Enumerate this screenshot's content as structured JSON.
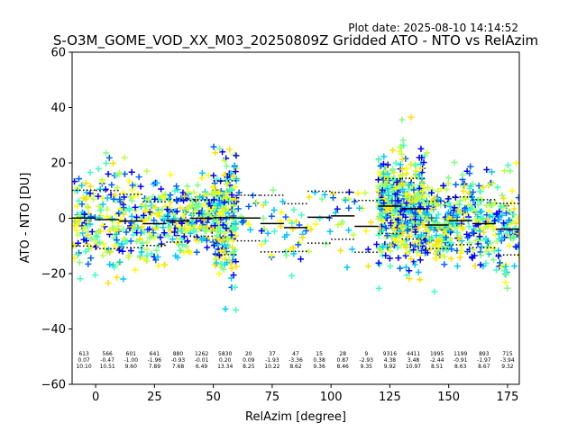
{
  "header": {
    "plot_date": "Plot date: 2025-08-10 14:14:52",
    "title": "S-O3M_GOME_VOD_XX_M03_20250809Z Gridded ATO - NTO vs RelAzim"
  },
  "chart_data": {
    "type": "scatter",
    "title": "S-O3M_GOME_VOD_XX_M03_20250809Z Gridded ATO - NTO vs RelAzim",
    "xlabel": "RelAzim [degree]",
    "ylabel": "ATO - NTO [DU]",
    "xlim": [
      -10,
      180
    ],
    "ylim": [
      -60,
      60
    ],
    "xticks": [
      0,
      25,
      50,
      75,
      100,
      125,
      150,
      175
    ],
    "yticks": [
      -60,
      -40,
      -20,
      0,
      20,
      40,
      60
    ],
    "grid": false,
    "marker": "+",
    "colors": [
      "#0000ff",
      "#0060ff",
      "#00c8ff",
      "#40ffc0",
      "#80ff80",
      "#c0ff40",
      "#ffff00",
      "#ffe000"
    ],
    "bins": [
      {
        "center": -5,
        "count": "613",
        "mean": 0.07,
        "std": 10.1,
        "mean_label": "0.07",
        "std_label": "10.10"
      },
      {
        "center": 5,
        "count": "566",
        "mean": -0.47,
        "std": 10.51,
        "mean_label": "-0.47",
        "std_label": "10.51"
      },
      {
        "center": 15,
        "count": "601",
        "mean": -1.0,
        "std": 9.6,
        "mean_label": "-1.00",
        "std_label": "9.60"
      },
      {
        "center": 25,
        "count": "641",
        "mean": -1.96,
        "std": 7.89,
        "mean_label": "-1.96",
        "std_label": "7.89"
      },
      {
        "center": 35,
        "count": "880",
        "mean": -0.93,
        "std": 7.68,
        "mean_label": "-0.93",
        "std_label": "7.68"
      },
      {
        "center": 45,
        "count": "1262",
        "mean": -0.01,
        "std": 6.49,
        "mean_label": "-0.01",
        "std_label": "6.49"
      },
      {
        "center": 55,
        "count": "5830",
        "mean": 0.2,
        "std": 13.34,
        "mean_label": "0.20",
        "std_label": "13.34"
      },
      {
        "center": 65,
        "count": "20",
        "mean": 0.09,
        "std": 8.25,
        "mean_label": "0.09",
        "std_label": "8.25"
      },
      {
        "center": 75,
        "count": "37",
        "mean": -1.93,
        "std": 10.22,
        "mean_label": "-1.93",
        "std_label": "10.22"
      },
      {
        "center": 85,
        "count": "47",
        "mean": -3.36,
        "std": 8.62,
        "mean_label": "-3.36",
        "std_label": "8.62"
      },
      {
        "center": 95,
        "count": "15",
        "mean": 0.38,
        "std": 9.36,
        "mean_label": "0.38",
        "std_label": "9.36"
      },
      {
        "center": 105,
        "count": "28",
        "mean": 0.87,
        "std": 8.46,
        "mean_label": "0.87",
        "std_label": "8.46"
      },
      {
        "center": 115,
        "count": "9",
        "mean": -2.93,
        "std": 9.35,
        "mean_label": "-2.93",
        "std_label": "9.35"
      },
      {
        "center": 125,
        "count": "9316",
        "mean": 4.38,
        "std": 9.92,
        "mean_label": "4.38",
        "std_label": "9.92"
      },
      {
        "center": 135,
        "count": "4411",
        "mean": 3.48,
        "std": 10.97,
        "mean_label": "3.48",
        "std_label": "10.97"
      },
      {
        "center": 145,
        "count": "1995",
        "mean": -2.44,
        "std": 8.51,
        "mean_label": "-2.44",
        "std_label": "8.51"
      },
      {
        "center": 155,
        "count": "1199",
        "mean": -0.91,
        "std": 8.63,
        "mean_label": "-0.91",
        "std_label": "8.63"
      },
      {
        "center": 165,
        "count": "893",
        "mean": -1.97,
        "std": 8.67,
        "mean_label": "-1.97",
        "std_label": "8.67"
      },
      {
        "center": 175,
        "count": "715",
        "mean": -3.94,
        "std": 9.32,
        "mean_label": "-3.94",
        "std_label": "9.32"
      }
    ]
  }
}
